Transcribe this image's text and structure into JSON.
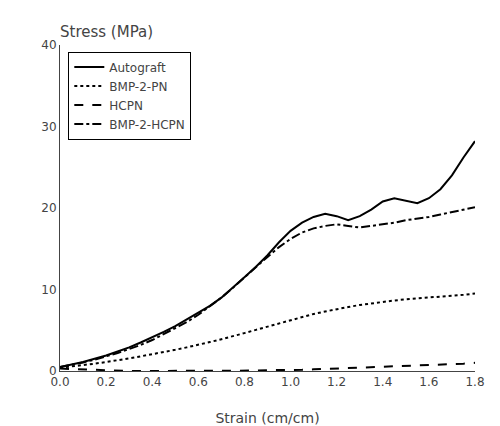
{
  "chart_data": {
    "type": "line",
    "title": "Stress (MPa)",
    "x_label": "Strain (cm/cm)",
    "x": [
      0.0,
      0.05,
      0.1,
      0.15,
      0.2,
      0.25,
      0.3,
      0.35,
      0.4,
      0.45,
      0.5,
      0.55,
      0.6,
      0.65,
      0.7,
      0.75,
      0.8,
      0.85,
      0.9,
      0.95,
      1.0,
      1.05,
      1.1,
      1.15,
      1.2,
      1.25,
      1.3,
      1.35,
      1.4,
      1.45,
      1.5,
      1.55,
      1.6,
      1.65,
      1.7,
      1.75,
      1.8
    ],
    "series": [
      {
        "name": "Autograft",
        "color": "#000000",
        "line_style": "solid",
        "values": [
          0.5,
          0.8,
          1.1,
          1.5,
          1.9,
          2.4,
          2.9,
          3.5,
          4.1,
          4.8,
          5.5,
          6.3,
          7.1,
          8.0,
          9.0,
          10.2,
          11.5,
          12.8,
          14.2,
          15.8,
          17.2,
          18.2,
          18.9,
          19.3,
          19.0,
          18.5,
          19.0,
          19.8,
          20.8,
          21.2,
          20.9,
          20.6,
          21.2,
          22.3,
          24.0,
          26.2,
          28.2
        ]
      },
      {
        "name": "BMP-2-PN",
        "color": "#000000",
        "line_style": "dotted",
        "values": [
          0.4,
          0.55,
          0.7,
          0.9,
          1.1,
          1.3,
          1.55,
          1.8,
          2.05,
          2.3,
          2.6,
          2.9,
          3.2,
          3.55,
          3.9,
          4.25,
          4.65,
          5.05,
          5.45,
          5.85,
          6.25,
          6.65,
          7.0,
          7.3,
          7.6,
          7.85,
          8.1,
          8.3,
          8.5,
          8.65,
          8.8,
          8.9,
          9.0,
          9.1,
          9.2,
          9.35,
          9.5
        ]
      },
      {
        "name": "HCPN",
        "color": "#000000",
        "line_style": "dashed",
        "values": [
          0.3,
          0.25,
          0.15,
          0.1,
          0.05,
          0.02,
          0.0,
          0.0,
          0.0,
          0.0,
          0.0,
          0.0,
          0.0,
          0.0,
          0.0,
          0.05,
          0.05,
          0.05,
          0.1,
          0.1,
          0.1,
          0.15,
          0.2,
          0.25,
          0.3,
          0.35,
          0.4,
          0.45,
          0.5,
          0.55,
          0.6,
          0.65,
          0.7,
          0.75,
          0.8,
          0.9,
          1.0
        ]
      },
      {
        "name": "BMP-2-HCPN",
        "color": "#000000",
        "line_style": "dashdot",
        "values": [
          0.5,
          0.75,
          1.05,
          1.4,
          1.8,
          2.2,
          2.7,
          3.2,
          3.8,
          4.5,
          5.2,
          6.0,
          6.9,
          7.9,
          9.0,
          10.2,
          11.5,
          12.8,
          14.0,
          15.2,
          16.2,
          17.0,
          17.5,
          17.8,
          18.0,
          17.8,
          17.6,
          17.8,
          18.0,
          18.2,
          18.5,
          18.7,
          18.9,
          19.2,
          19.5,
          19.8,
          20.1
        ]
      }
    ],
    "xlim": [
      0.0,
      1.8
    ],
    "xticks": [
      {
        "value": 0,
        "label": "0.0"
      },
      0.2,
      0.4,
      0.6,
      0.8,
      {
        "value": 1,
        "label": "1.0"
      },
      1.2,
      1.4,
      1.6,
      1.8
    ],
    "ylim": [
      0,
      40
    ],
    "yticks": [
      0,
      10,
      20,
      30,
      40
    ],
    "grid": false,
    "legend": "upper left"
  }
}
